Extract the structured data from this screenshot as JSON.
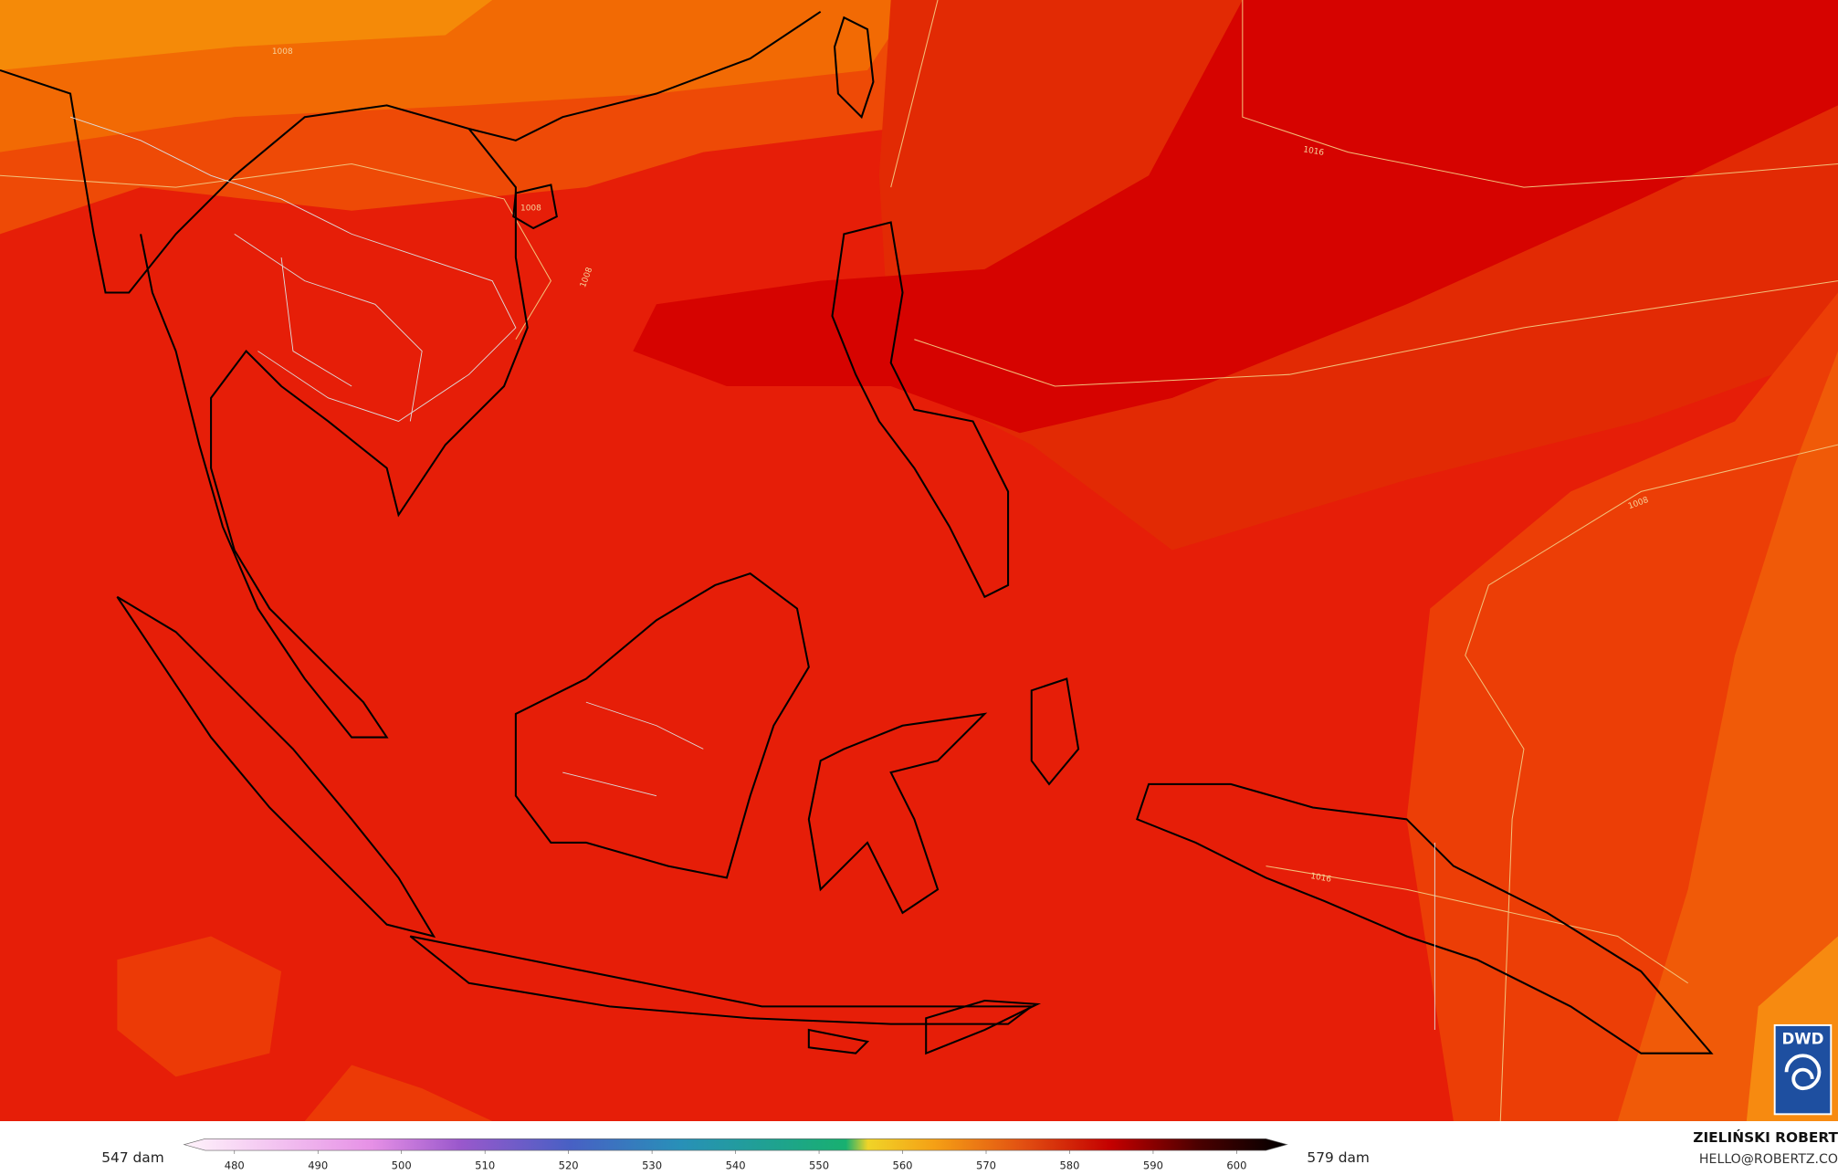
{
  "map": {
    "isobar_labels": [
      "1008",
      "1008",
      "1008",
      "1016",
      "1008",
      "1016"
    ]
  },
  "legend": {
    "min_label": "547 dam",
    "max_label": "579 dam",
    "ticks": [
      480,
      490,
      500,
      510,
      520,
      530,
      540,
      550,
      560,
      570,
      580,
      590,
      600
    ]
  },
  "credit": {
    "author": "ZIELIŃSKI ROBERT",
    "email": "HELLO@ROBERTZ.CO"
  },
  "logo": "DWD"
}
